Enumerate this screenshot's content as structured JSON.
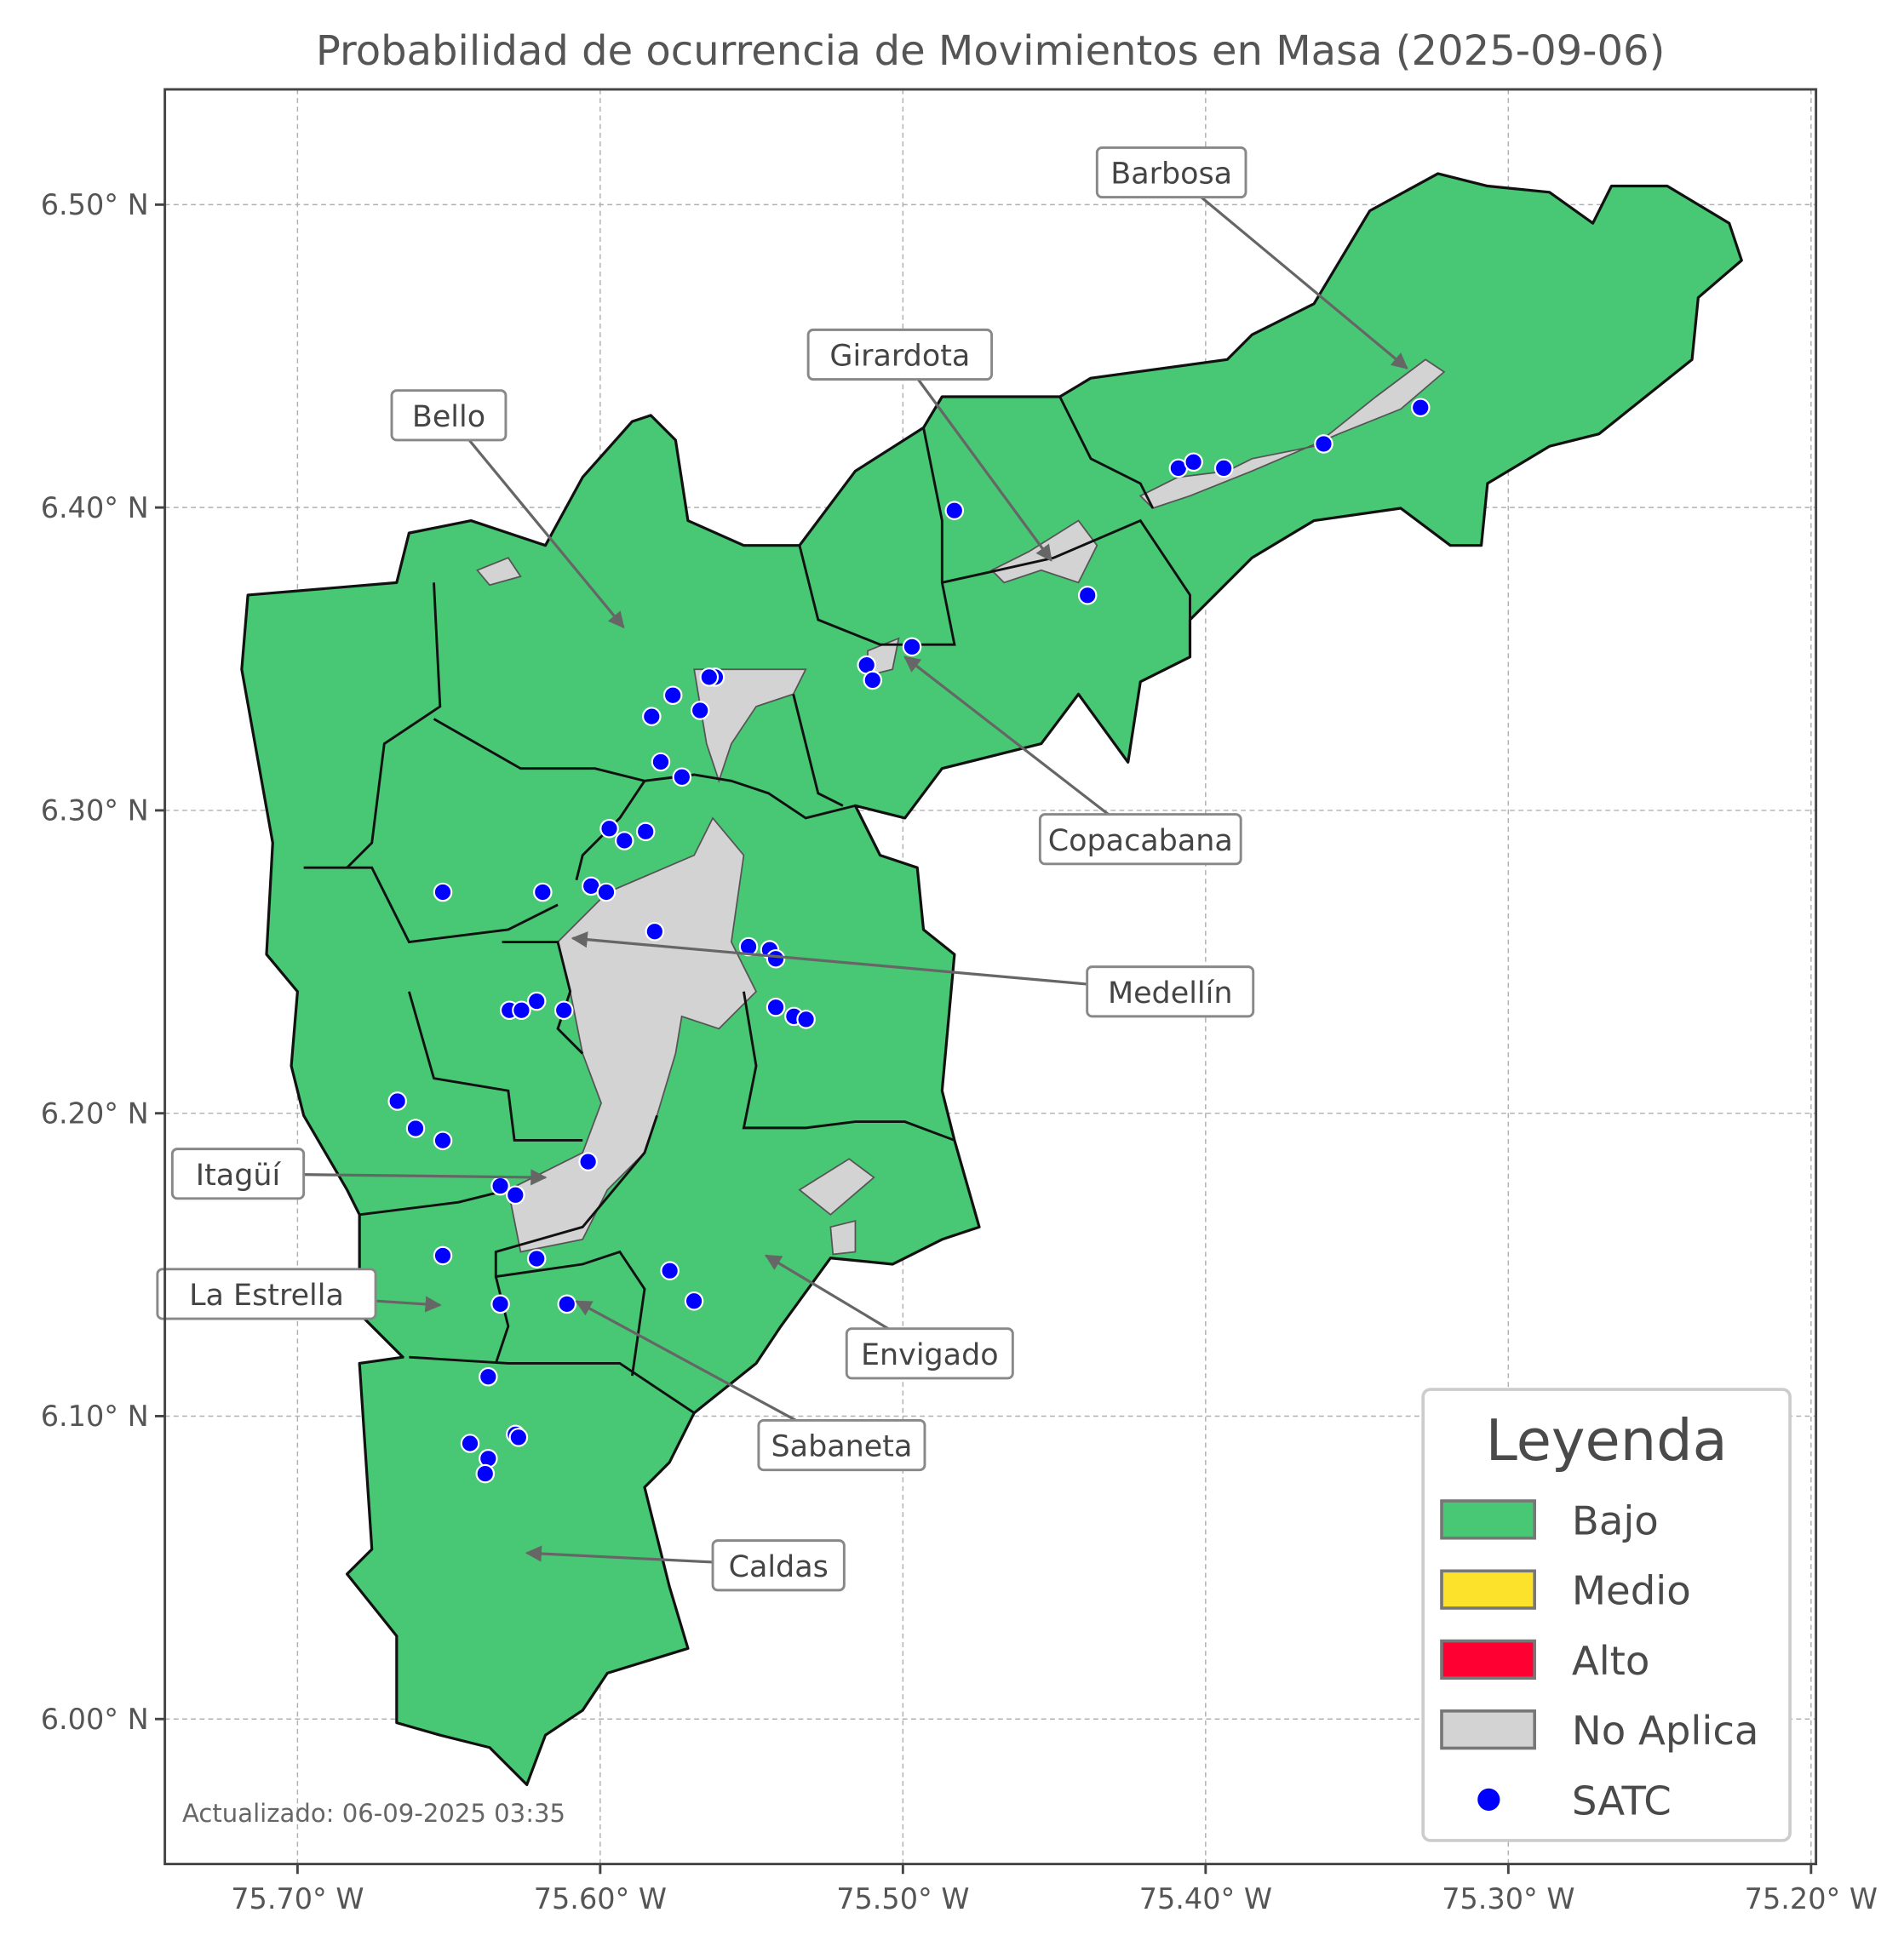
{
  "chart_data": {
    "type": "map",
    "title": "Probabilidad de ocurrencia de Movimientos en Masa (2025-09-06)",
    "footer": "Actualizado: 06-09-2025 03:35",
    "x_axis": {
      "range_lon_w": [
        75.745,
        75.197
      ],
      "ticks": [
        75.7,
        75.6,
        75.5,
        75.4,
        75.3,
        75.2
      ],
      "tick_labels": [
        "75.70° W",
        "75.60° W",
        "75.50° W",
        "75.40° W",
        "75.30° W",
        "75.20° W"
      ]
    },
    "y_axis": {
      "range_lat_n": [
        5.953,
        6.539
      ],
      "ticks": [
        6.0,
        6.1,
        6.2,
        6.3,
        6.4,
        6.5
      ],
      "tick_labels": [
        "6.00° N",
        "6.10° N",
        "6.20° N",
        "6.30° N",
        "6.40° N",
        "6.50° N"
      ]
    },
    "grid": true,
    "legend": {
      "title": "Leyenda",
      "placement": "bottom-right",
      "items": [
        {
          "label": "Bajo",
          "color": "#48c774",
          "kind": "patch"
        },
        {
          "label": "Medio",
          "color": "#fce22a",
          "kind": "patch"
        },
        {
          "label": "Alto",
          "color": "#ff0033",
          "kind": "patch"
        },
        {
          "label": "No Aplica",
          "color": "#d3d3d3",
          "kind": "patch"
        },
        {
          "label": "SATC",
          "color": "#0000ff",
          "kind": "point"
        }
      ]
    },
    "region_class": "Bajo",
    "municipalities": [
      {
        "name": "Barbosa"
      },
      {
        "name": "Girardota"
      },
      {
        "name": "Bello"
      },
      {
        "name": "Copacabana"
      },
      {
        "name": "Medellín"
      },
      {
        "name": "Itagüí"
      },
      {
        "name": "La Estrella"
      },
      {
        "name": "Envigado"
      },
      {
        "name": "Sabaneta"
      },
      {
        "name": "Caldas"
      }
    ],
    "satc_points": [
      [
        75.483,
        6.399
      ],
      [
        75.409,
        6.413
      ],
      [
        75.404,
        6.415
      ],
      [
        75.394,
        6.413
      ],
      [
        75.361,
        6.421
      ],
      [
        75.329,
        6.433
      ],
      [
        75.439,
        6.371
      ],
      [
        75.497,
        6.354
      ],
      [
        75.512,
        6.348
      ],
      [
        75.51,
        6.343
      ],
      [
        75.562,
        6.344
      ],
      [
        75.564,
        6.344
      ],
      [
        75.576,
        6.338
      ],
      [
        75.567,
        6.333
      ],
      [
        75.583,
        6.331
      ],
      [
        75.58,
        6.316
      ],
      [
        75.573,
        6.311
      ],
      [
        75.597,
        6.294
      ],
      [
        75.592,
        6.29
      ],
      [
        75.585,
        6.293
      ],
      [
        75.652,
        6.273
      ],
      [
        75.619,
        6.273
      ],
      [
        75.603,
        6.275
      ],
      [
        75.598,
        6.273
      ],
      [
        75.582,
        6.26
      ],
      [
        75.551,
        6.255
      ],
      [
        75.544,
        6.254
      ],
      [
        75.542,
        6.251
      ],
      [
        75.542,
        6.235
      ],
      [
        75.536,
        6.232
      ],
      [
        75.532,
        6.231
      ],
      [
        75.621,
        6.237
      ],
      [
        75.63,
        6.234
      ],
      [
        75.626,
        6.234
      ],
      [
        75.612,
        6.234
      ],
      [
        75.667,
        6.204
      ],
      [
        75.661,
        6.195
      ],
      [
        75.652,
        6.191
      ],
      [
        75.604,
        6.184
      ],
      [
        75.633,
        6.176
      ],
      [
        75.628,
        6.173
      ],
      [
        75.652,
        6.153
      ],
      [
        75.621,
        6.152
      ],
      [
        75.577,
        6.148
      ],
      [
        75.569,
        6.138
      ],
      [
        75.633,
        6.137
      ],
      [
        75.611,
        6.137
      ],
      [
        75.637,
        6.113
      ],
      [
        75.643,
        6.091
      ],
      [
        75.628,
        6.094
      ],
      [
        75.627,
        6.093
      ],
      [
        75.637,
        6.086
      ],
      [
        75.638,
        6.081
      ]
    ]
  }
}
